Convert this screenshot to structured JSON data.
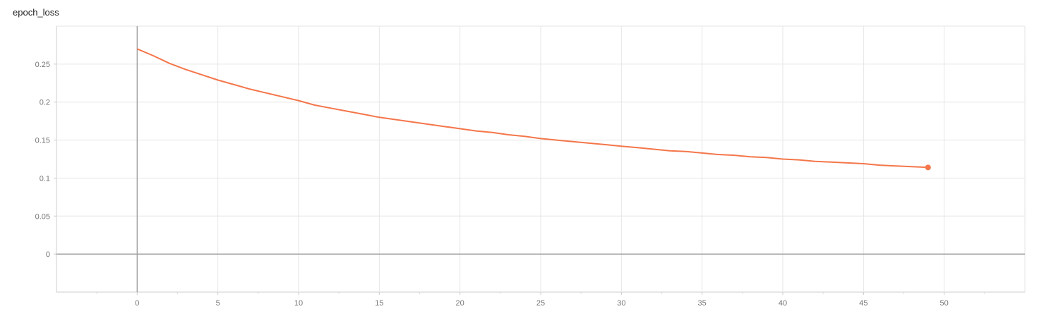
{
  "chart_data": {
    "type": "line",
    "title": "epoch_loss",
    "xlabel": "",
    "ylabel": "",
    "xlim": [
      -5,
      55
    ],
    "ylim": [
      -0.05,
      0.3
    ],
    "x_ticks": [
      "0",
      "5",
      "10",
      "15",
      "20",
      "25",
      "30",
      "35",
      "40",
      "45",
      "50"
    ],
    "y_ticks": [
      "0",
      "0.05",
      "0.1",
      "0.15",
      "0.2",
      "0.25"
    ],
    "grid": true,
    "legend": "none",
    "series": [
      {
        "color": "#f4764a",
        "x": [
          0,
          1,
          2,
          3,
          4,
          5,
          6,
          7,
          8,
          9,
          10,
          11,
          12,
          13,
          14,
          15,
          16,
          17,
          18,
          19,
          20,
          21,
          22,
          23,
          24,
          25,
          26,
          27,
          28,
          29,
          30,
          31,
          32,
          33,
          34,
          35,
          36,
          37,
          38,
          39,
          40,
          41,
          42,
          43,
          44,
          45,
          46,
          47,
          48,
          49
        ],
        "values": [
          0.27,
          0.261,
          0.251,
          0.243,
          0.236,
          0.229,
          0.223,
          0.217,
          0.212,
          0.207,
          0.202,
          0.196,
          0.192,
          0.188,
          0.184,
          0.18,
          0.177,
          0.174,
          0.171,
          0.168,
          0.165,
          0.162,
          0.16,
          0.157,
          0.155,
          0.152,
          0.15,
          0.148,
          0.146,
          0.144,
          0.142,
          0.14,
          0.138,
          0.136,
          0.135,
          0.133,
          0.131,
          0.13,
          0.128,
          0.127,
          0.125,
          0.124,
          0.122,
          0.121,
          0.12,
          0.119,
          0.117,
          0.116,
          0.115,
          0.114
        ]
      }
    ]
  }
}
